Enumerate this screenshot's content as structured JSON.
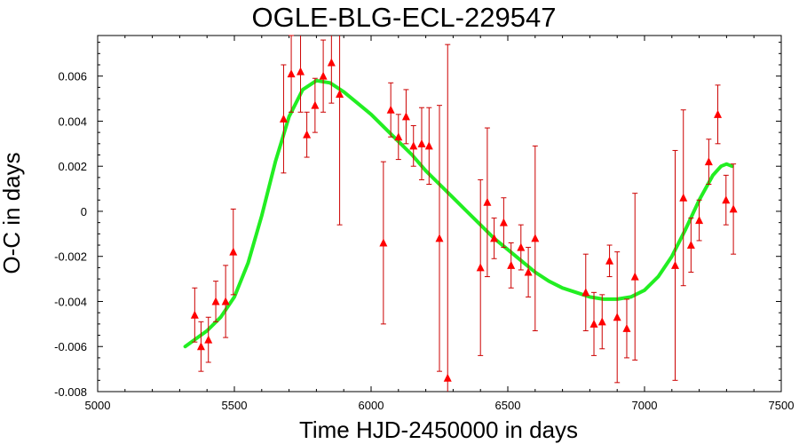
{
  "chart_data": {
    "type": "scatter",
    "title": "OGLE-BLG-ECL-229547",
    "xlabel": "Time HJD-2450000 in days",
    "ylabel": "O-C in days",
    "xlim": [
      5000,
      7500
    ],
    "ylim": [
      -0.008,
      0.0078
    ],
    "grid": false,
    "legend": "none",
    "x_ticks": [
      "5000",
      "5500",
      "6000",
      "6500",
      "7000",
      "7500"
    ],
    "y_ticks": [
      "0.006",
      "0.004",
      "0.002",
      "0",
      "-0.002",
      "-0.004",
      "-0.006",
      "-0.008"
    ],
    "colors": {
      "points": "#ff0000",
      "errorbars": "#cc0000",
      "fit": "#22ee22"
    },
    "series": [
      {
        "kind": "points-with-errorbars",
        "points": [
          {
            "x": 5355,
            "y": -0.0046,
            "err": 0.0012
          },
          {
            "x": 5378,
            "y": -0.006,
            "err": 0.0011
          },
          {
            "x": 5405,
            "y": -0.0057,
            "err": 0.001
          },
          {
            "x": 5432,
            "y": -0.004,
            "err": 0.0009
          },
          {
            "x": 5468,
            "y": -0.004,
            "err": 0.0016
          },
          {
            "x": 5496,
            "y": -0.0018,
            "err": 0.0019
          },
          {
            "x": 5680,
            "y": 0.0041,
            "err": 0.0024
          },
          {
            "x": 5708,
            "y": 0.0061,
            "err": 0.0017
          },
          {
            "x": 5742,
            "y": 0.0062,
            "err": 0.0018
          },
          {
            "x": 5765,
            "y": 0.0034,
            "err": 0.001
          },
          {
            "x": 5795,
            "y": 0.0047,
            "err": 0.0012
          },
          {
            "x": 5825,
            "y": 0.006,
            "err": 0.0016
          },
          {
            "x": 5855,
            "y": 0.0066,
            "err": 0.0018
          },
          {
            "x": 5885,
            "y": 0.0052,
            "err": 0.0058
          },
          {
            "x": 6045,
            "y": -0.0014,
            "err": 0.0036
          },
          {
            "x": 6072,
            "y": 0.0045,
            "err": 0.0012
          },
          {
            "x": 6100,
            "y": 0.0033,
            "err": 0.001
          },
          {
            "x": 6128,
            "y": 0.0042,
            "err": 0.0012
          },
          {
            "x": 6155,
            "y": 0.0029,
            "err": 0.0009
          },
          {
            "x": 6185,
            "y": 0.003,
            "err": 0.0016
          },
          {
            "x": 6212,
            "y": 0.0029,
            "err": 0.0017
          },
          {
            "x": 6250,
            "y": -0.0012,
            "err": 0.0059
          },
          {
            "x": 6280,
            "y": -0.0074,
            "err": 0.0148
          },
          {
            "x": 6400,
            "y": -0.0025,
            "err": 0.0039
          },
          {
            "x": 6425,
            "y": 0.0004,
            "err": 0.0033
          },
          {
            "x": 6450,
            "y": -0.0012,
            "err": 0.0009
          },
          {
            "x": 6485,
            "y": -0.0005,
            "err": 0.0011
          },
          {
            "x": 6512,
            "y": -0.0024,
            "err": 0.001
          },
          {
            "x": 6548,
            "y": -0.0016,
            "err": 0.001
          },
          {
            "x": 6575,
            "y": -0.0027,
            "err": 0.0011
          },
          {
            "x": 6600,
            "y": -0.0012,
            "err": 0.0041
          },
          {
            "x": 6785,
            "y": -0.0036,
            "err": 0.0017
          },
          {
            "x": 6815,
            "y": -0.005,
            "err": 0.0014
          },
          {
            "x": 6845,
            "y": -0.0049,
            "err": 0.0012
          },
          {
            "x": 6872,
            "y": -0.0022,
            "err": 0.0007
          },
          {
            "x": 6900,
            "y": -0.0047,
            "err": 0.0029
          },
          {
            "x": 6935,
            "y": -0.0052,
            "err": 0.0013
          },
          {
            "x": 6965,
            "y": -0.0029,
            "err": 0.0037
          },
          {
            "x": 7112,
            "y": -0.0024,
            "err": 0.0051
          },
          {
            "x": 7142,
            "y": 0.0006,
            "err": 0.0039
          },
          {
            "x": 7170,
            "y": -0.0015,
            "err": 0.0012
          },
          {
            "x": 7200,
            "y": -0.0004,
            "err": 0.0009
          },
          {
            "x": 7235,
            "y": 0.0022,
            "err": 0.001
          },
          {
            "x": 7268,
            "y": 0.0043,
            "err": 0.0013
          },
          {
            "x": 7298,
            "y": 0.0005,
            "err": 0.0011
          },
          {
            "x": 7325,
            "y": 0.0001,
            "err": 0.002
          }
        ]
      },
      {
        "kind": "fit-curve",
        "x": [
          5320,
          5400,
          5450,
          5500,
          5550,
          5600,
          5650,
          5700,
          5750,
          5800,
          5850,
          5900,
          5950,
          6000,
          6050,
          6100,
          6150,
          6200,
          6250,
          6300,
          6350,
          6400,
          6450,
          6500,
          6550,
          6600,
          6650,
          6700,
          6750,
          6800,
          6850,
          6900,
          6950,
          7000,
          7050,
          7100,
          7150,
          7200,
          7250,
          7280,
          7300,
          7320
        ],
        "y": [
          -0.006,
          -0.0053,
          -0.0047,
          -0.0038,
          -0.0023,
          -0.0002,
          0.0022,
          0.0042,
          0.0054,
          0.0058,
          0.0057,
          0.0053,
          0.0048,
          0.0043,
          0.0037,
          0.0031,
          0.0025,
          0.0018,
          0.0012,
          0.0006,
          0.0,
          -0.0006,
          -0.0012,
          -0.0017,
          -0.0022,
          -0.0027,
          -0.0031,
          -0.0034,
          -0.0036,
          -0.0038,
          -0.0039,
          -0.0039,
          -0.0038,
          -0.0035,
          -0.0029,
          -0.002,
          -0.0008,
          0.0005,
          0.0016,
          0.002,
          0.0021,
          0.002
        ]
      }
    ]
  }
}
